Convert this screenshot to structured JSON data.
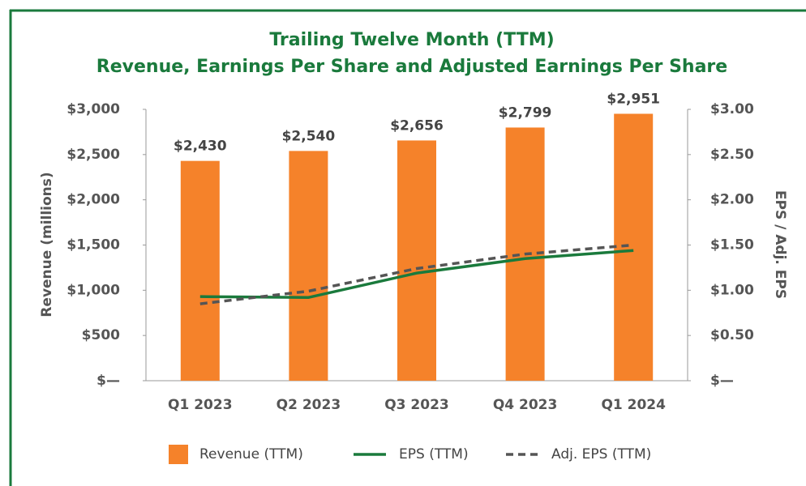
{
  "chart_data": {
    "type": "bar_line",
    "title": [
      "Trailing Twelve Month (TTM)",
      "Revenue, Earnings Per Share and Adjusted Earnings Per Share"
    ],
    "y_label": "Revenue (millions)",
    "y2_label": "EPS / Adj. EPS",
    "categories": [
      "Q1 2023",
      "Q2 2023",
      "Q3 2023",
      "Q4 2023",
      "Q1 2024"
    ],
    "series": [
      {
        "name": "Revenue (TTM)",
        "type": "bar",
        "color": "#f5822a",
        "values": [
          2430,
          2540,
          2656,
          2799,
          2951
        ],
        "value_labels": [
          "$2,430",
          "$2,540",
          "$2,656",
          "$2,799",
          "$2,951"
        ]
      },
      {
        "name": "EPS (TTM)",
        "type": "line",
        "axis": "y2",
        "color": "#1a7a3c",
        "values": [
          0.93,
          0.92,
          1.19,
          1.35,
          1.44
        ]
      },
      {
        "name": "Adj. EPS (TTM)",
        "type": "line",
        "axis": "y2",
        "dashed": true,
        "color": "#555555",
        "values": [
          0.85,
          0.99,
          1.24,
          1.4,
          1.5
        ]
      }
    ],
    "ylim": [
      0,
      3000
    ],
    "yticks": [
      {
        "value": 0,
        "label": "$—"
      },
      {
        "value": 500,
        "label": "$500"
      },
      {
        "value": 1000,
        "label": "$1,000"
      },
      {
        "value": 1500,
        "label": "$1,500"
      },
      {
        "value": 2000,
        "label": "$2,000"
      },
      {
        "value": 2500,
        "label": "$2,500"
      },
      {
        "value": 3000,
        "label": "$3,000"
      }
    ],
    "y2lim": [
      0,
      3
    ],
    "y2ticks": [
      {
        "value": 0,
        "label": "$—"
      },
      {
        "value": 0.5,
        "label": "$0.50"
      },
      {
        "value": 1,
        "label": "$1.00"
      },
      {
        "value": 1.5,
        "label": "$1.50"
      },
      {
        "value": 2,
        "label": "$2.00"
      },
      {
        "value": 2.5,
        "label": "$2.50"
      },
      {
        "value": 3,
        "label": "$3.00"
      }
    ],
    "legend": "bottom"
  }
}
